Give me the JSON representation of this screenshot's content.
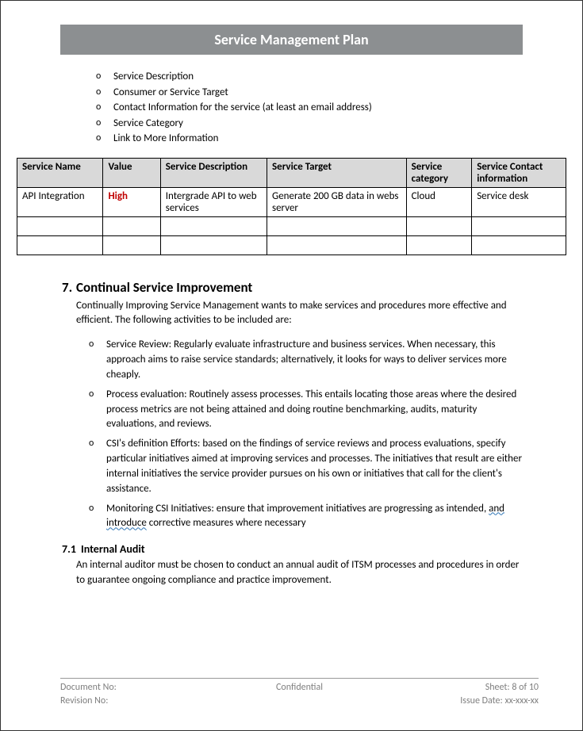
{
  "title": "Service Management Plan",
  "intro_items": [
    "Service Description",
    "Consumer or Service Target",
    "Contact Information for the service (at least an email address)",
    "Service Category",
    "Link to More Information"
  ],
  "table": {
    "headers": [
      "Service Name",
      "Value",
      "Service Description",
      "Service Target",
      "Service category",
      "Service Contact information"
    ],
    "rows": [
      {
        "name": "API Integration",
        "value": "High",
        "value_color": "#c00000",
        "desc": "Intergrade API to web services",
        "target": "Generate 200 GB data in webs server",
        "category": "Cloud",
        "contact": "Service desk"
      }
    ],
    "empty_rows": 2
  },
  "section7": {
    "number": "7.",
    "title": "Continual Service Improvement",
    "intro": "Continually Improving Service Management wants to make services and procedures more effective and efficient. The following activities to be included are:",
    "items": [
      "Service Review: Regularly evaluate infrastructure and business services. When necessary, this approach aims to raise service standards; alternatively, it looks for ways to deliver services more cheaply.",
      "Process evaluation: Routinely assess processes. This entails locating those areas where the desired process metrics are not being attained and doing routine benchmarking, audits, maturity evaluations, and reviews.",
      "CSI's definition Efforts: based on the findings of service reviews and process evaluations, specify particular initiatives aimed at improving services and processes. The initiatives that result are either internal initiatives the service provider pursues on his own or initiatives that call for the client's assistance."
    ],
    "item4_prefix": " Monitoring CSI Initiatives: ensure that improvement initiatives are progressing as intended, ",
    "item4_wavy": "and  introduce",
    "item4_suffix": " corrective measures where necessary"
  },
  "section71": {
    "number": "7.1",
    "title": "Internal Audit",
    "text": "An internal auditor must be chosen to conduct an annual audit of ITSM processes and procedures in order to guarantee ongoing compliance and practice improvement."
  },
  "footer": {
    "doc_no": "Document No:",
    "confidential": "Confidential",
    "sheet": "Sheet: 8 of 10",
    "revision": "Revision No:",
    "issue": "Issue Date: xx-xxx-xx"
  }
}
